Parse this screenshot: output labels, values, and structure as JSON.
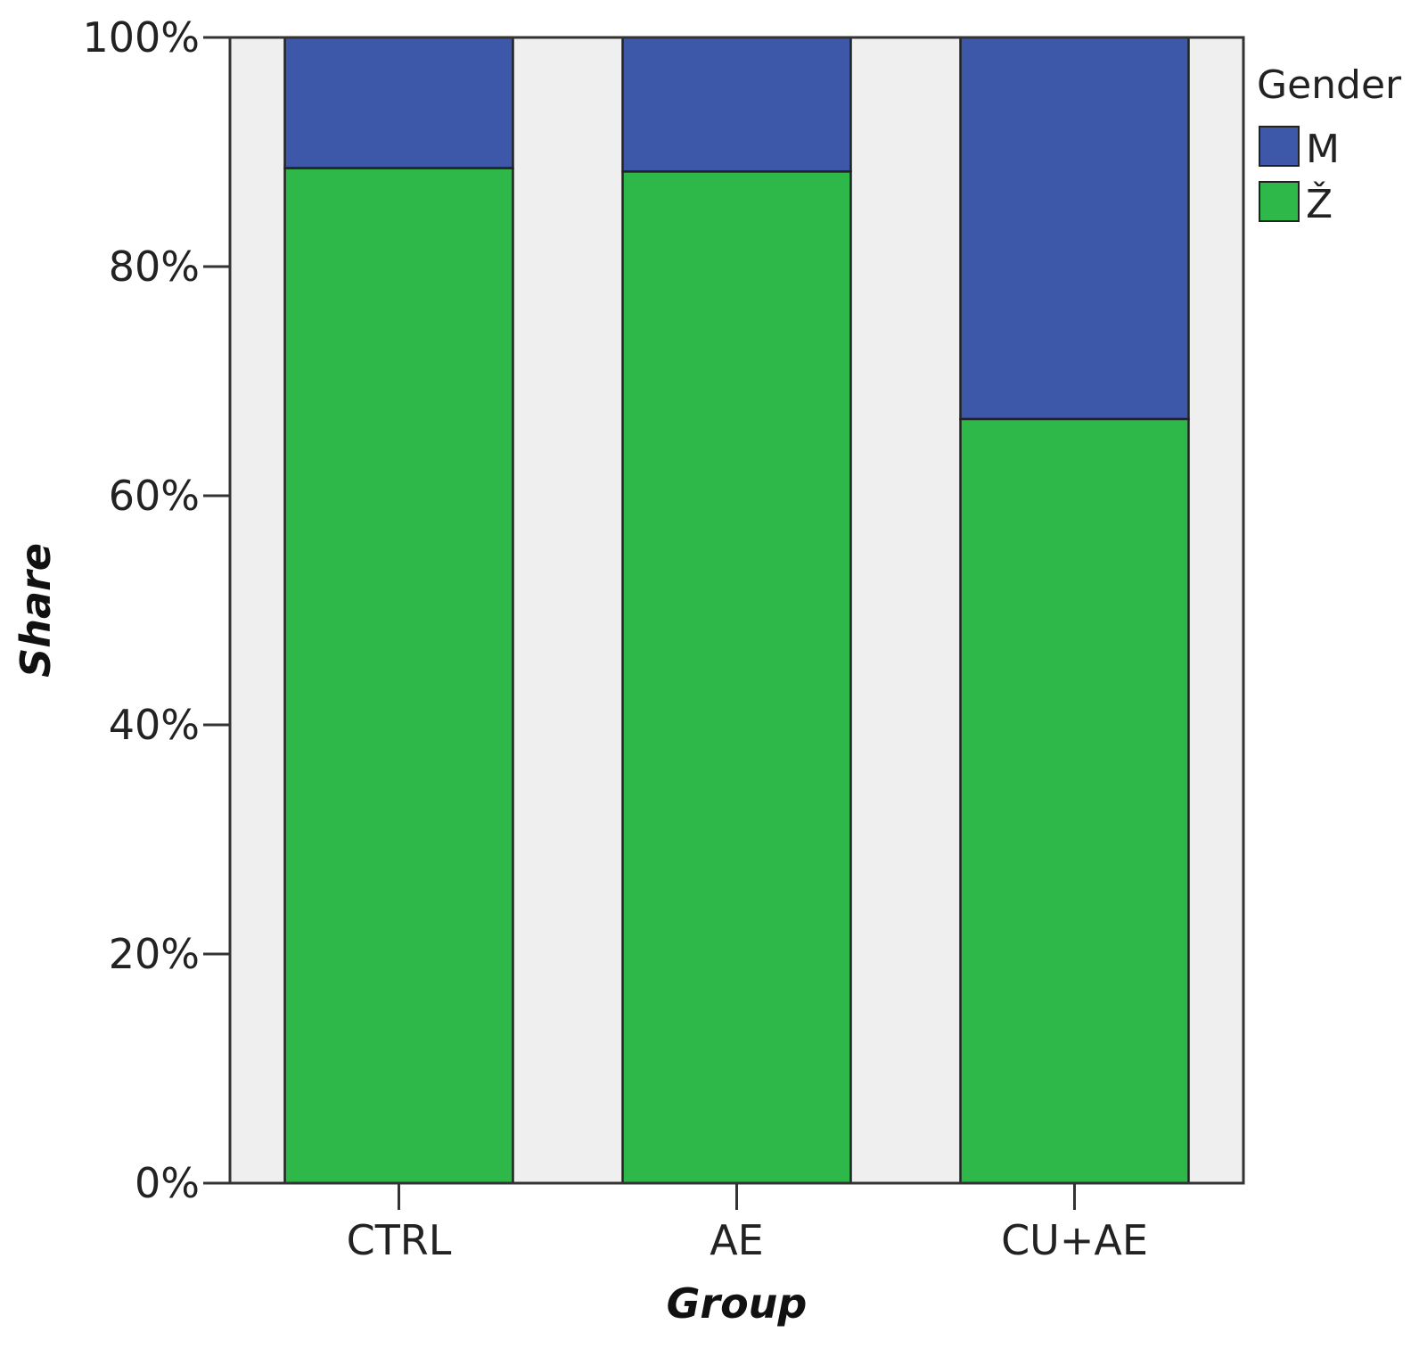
{
  "chart_data": {
    "type": "bar",
    "stacked": true,
    "categories": [
      "CTRL",
      "AE",
      "CU+AE"
    ],
    "series": [
      {
        "name": "Ž",
        "values": [
          88.6,
          88.3,
          66.7
        ],
        "color": "#2fb84a"
      },
      {
        "name": "M",
        "values": [
          11.4,
          11.7,
          33.3
        ],
        "color": "#3d58a8"
      }
    ],
    "title": "",
    "xlabel": "Group",
    "ylabel": "Share",
    "ylim": [
      0,
      100
    ],
    "yticks": [
      0,
      20,
      40,
      60,
      80,
      100
    ],
    "ytick_labels": [
      "0%",
      "20%",
      "40%",
      "60%",
      "80%",
      "100%"
    ],
    "grid": false,
    "legend": {
      "title": "Gender",
      "placement": "top-right",
      "entries": [
        {
          "name": "M",
          "color": "#3d58a8"
        },
        {
          "name": "Ž",
          "color": "#2fb84a"
        }
      ]
    },
    "plot_background": "#efefef"
  }
}
